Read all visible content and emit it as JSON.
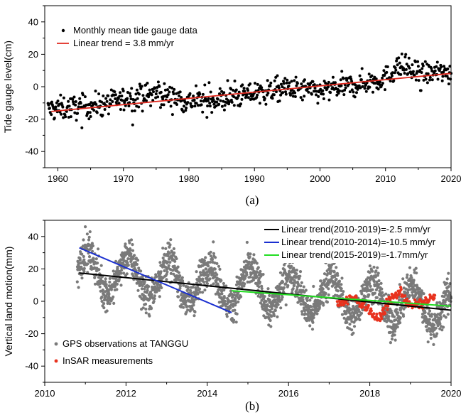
{
  "chart_data": [
    {
      "type": "scatter",
      "caption": "(a)",
      "ylabel": "Tide gauge level(cm)",
      "xlabel": "",
      "xlim": [
        1958,
        2020
      ],
      "ylim": [
        -50,
        50
      ],
      "xticks": [
        "1960",
        "1970",
        "1980",
        "1990",
        "2000",
        "2010",
        "2020"
      ],
      "yticks": [
        "-40",
        "-20",
        "0",
        "20",
        "40"
      ],
      "grid": false,
      "legend_position": "top-left",
      "series": [
        {
          "name": "Monthly mean tide gauge data",
          "kind": "points",
          "color": "#000000",
          "x_start": 1958.5,
          "x_step": 0.08333,
          "anchors": [
            [
              1958.5,
              -14
            ],
            [
              1965,
              -12
            ],
            [
              1975,
              -4
            ],
            [
              1980,
              -9
            ],
            [
              1985,
              -8
            ],
            [
              1990,
              -4
            ],
            [
              1995,
              -1
            ],
            [
              2000,
              -3
            ],
            [
              2005,
              1
            ],
            [
              2010,
              5
            ],
            [
              2012,
              13
            ],
            [
              2015,
              8
            ],
            [
              2020,
              9
            ]
          ],
          "values_note": "approx. monthly means read from chart"
        },
        {
          "name": "Linear trend = 3.8 mm/yr",
          "kind": "line",
          "color": "#e0281e",
          "x": [
            1959,
            2020
          ],
          "y": [
            -15.3,
            8.2
          ]
        }
      ]
    },
    {
      "type": "scatter",
      "caption": "(b)",
      "ylabel": "Vertical land motion(mm)",
      "xlabel": "",
      "xlim": [
        2010,
        2020
      ],
      "ylim": [
        -50,
        50
      ],
      "xticks": [
        "2010",
        "2012",
        "2014",
        "2016",
        "2018",
        "2020"
      ],
      "yticks": [
        "-40",
        "-20",
        "0",
        "20",
        "40"
      ],
      "grid": false,
      "series": [
        {
          "name": "Linear trend(2010-2019)=-2.5 mm/yr",
          "kind": "line",
          "color": "#000000",
          "x": [
            2010.85,
            2020
          ],
          "y": [
            17.5,
            -5.5
          ]
        },
        {
          "name": "Linear trend(2010-2014)=-10.5 mm/yr",
          "kind": "line",
          "color": "#1a2fd0",
          "x": [
            2010.85,
            2014.6
          ],
          "y": [
            33,
            -7
          ]
        },
        {
          "name": "Linear trend(2015-2019)=-1.7mm/yr",
          "kind": "line",
          "color": "#22dd22",
          "x": [
            2014.6,
            2020
          ],
          "y": [
            6.5,
            -3
          ]
        },
        {
          "name": "GPS observations at TANGGU",
          "kind": "points",
          "color": "#7a7a7a",
          "x_range": [
            2010.8,
            2020
          ],
          "annual_amplitude": 12,
          "noise": 8
        },
        {
          "name": "InSAR measurements",
          "kind": "points",
          "color": "#e8321e",
          "x_range": [
            2017.2,
            2019.6
          ],
          "anchors": [
            [
              2017.2,
              -2
            ],
            [
              2017.6,
              2
            ],
            [
              2017.9,
              -3
            ],
            [
              2018.2,
              -12
            ],
            [
              2018.5,
              1
            ],
            [
              2018.75,
              6
            ],
            [
              2019.0,
              -3
            ],
            [
              2019.3,
              -1
            ],
            [
              2019.6,
              3
            ]
          ]
        }
      ]
    }
  ]
}
